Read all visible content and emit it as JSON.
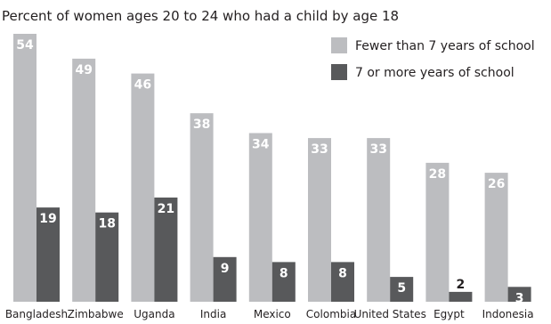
{
  "chart_data": {
    "type": "bar",
    "title": "Percent of women ages 20 to 24 who had a child by age 18",
    "xlabel": "",
    "ylabel": "",
    "ylim": [
      0,
      54
    ],
    "grid": false,
    "legend_position": "top-right",
    "categories": [
      "Bangladesh",
      "Zimbabwe",
      "Uganda",
      "India",
      "Mexico",
      "Colombia",
      "United States",
      "Egypt",
      "Indonesia"
    ],
    "series": [
      {
        "name": "Fewer than 7 years of school",
        "color": "#bcbdc0",
        "label_color": "#ffffff",
        "values": [
          54,
          49,
          46,
          38,
          34,
          33,
          33,
          28,
          26
        ]
      },
      {
        "name": "7 or more years of school",
        "color": "#58595b",
        "label_color": "#ffffff",
        "values": [
          19,
          18,
          21,
          9,
          8,
          8,
          5,
          2,
          3
        ]
      }
    ],
    "special_labels": {
      "Egypt-1": "outside-dark"
    }
  }
}
